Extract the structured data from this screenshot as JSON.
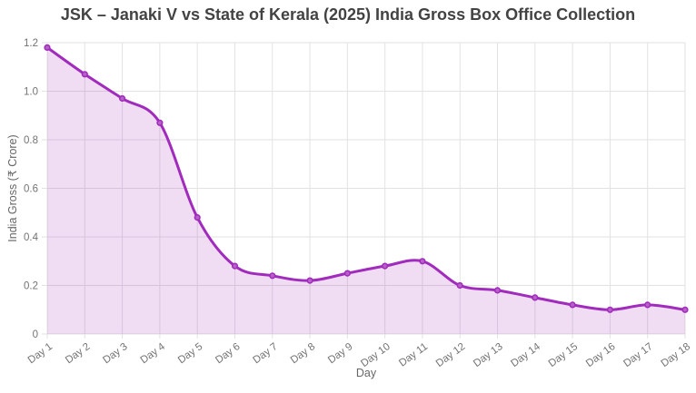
{
  "chart_data": {
    "type": "area",
    "title": "JSK – Janaki V vs State of Kerala (2025) India Gross Box Office Collection",
    "xlabel": "Day",
    "ylabel": "India Gross (₹ Crore)",
    "categories": [
      "Day 1",
      "Day 2",
      "Day 3",
      "Day 4",
      "Day 5",
      "Day 6",
      "Day 7",
      "Day 8",
      "Day 9",
      "Day 10",
      "Day 11",
      "Day 12",
      "Day 13",
      "Day 14",
      "Day 15",
      "Day 16",
      "Day 17",
      "Day 18"
    ],
    "values": [
      1.18,
      1.07,
      0.97,
      0.87,
      0.48,
      0.28,
      0.24,
      0.22,
      0.25,
      0.28,
      0.3,
      0.2,
      0.18,
      0.15,
      0.12,
      0.1,
      0.12,
      0.1
    ],
    "ylim": [
      0,
      1.2
    ],
    "y_ticks": [
      "0",
      "0.2",
      "0.4",
      "0.6",
      "0.8",
      "1.0",
      "1.2"
    ],
    "grid": true,
    "legend": "none",
    "point_style": "circle-outline",
    "line_smooth": true,
    "colors": {
      "line": "#a12bbc",
      "fill": "rgba(161, 43, 188, 0.16)",
      "marker_fill": "#b95fca",
      "grid": "#e2e2e2",
      "tick_text": "#737373",
      "axis_title_text": "#666666",
      "title_text": "#434343"
    }
  }
}
